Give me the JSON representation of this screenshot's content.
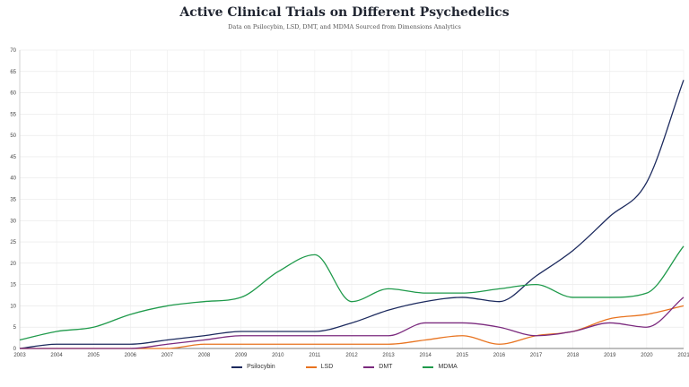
{
  "chart_data": {
    "type": "line",
    "title": "Active Clinical Trials on Different Psychedelics",
    "subtitle": "Data on Psilocybin, LSD, DMT, and MDMA Sourced from Dimensions Analytics",
    "xlabel": "",
    "ylabel": "",
    "x": [
      "2003",
      "2004",
      "2005",
      "2006",
      "2007",
      "2008",
      "2009",
      "2010",
      "2011",
      "2012",
      "2013",
      "2014",
      "2015",
      "2016",
      "2017",
      "2018",
      "2019",
      "2020",
      "2021"
    ],
    "ylim": [
      0,
      70
    ],
    "yticks": [
      0,
      5,
      10,
      15,
      20,
      25,
      30,
      35,
      40,
      45,
      50,
      55,
      60,
      65,
      70
    ],
    "grid": true,
    "legend_position": "bottom",
    "series": [
      {
        "name": "Psilocybin",
        "color": "#1c2a5e",
        "values": [
          0,
          1,
          1,
          1,
          2,
          3,
          4,
          4,
          4,
          6,
          9,
          11,
          12,
          11,
          17,
          23,
          31,
          39,
          63
        ]
      },
      {
        "name": "LSD",
        "color": "#e8731f",
        "values": [
          0,
          0,
          0,
          0,
          0,
          1,
          1,
          1,
          1,
          1,
          1,
          2,
          3,
          1,
          3,
          4,
          7,
          8,
          10
        ]
      },
      {
        "name": "DMT",
        "color": "#7b2a7e",
        "values": [
          0,
          0,
          0,
          0,
          1,
          2,
          3,
          3,
          3,
          3,
          3,
          6,
          6,
          5,
          3,
          4,
          6,
          5,
          12
        ]
      },
      {
        "name": "MDMA",
        "color": "#1f9a4b",
        "values": [
          2,
          4,
          5,
          8,
          10,
          11,
          12,
          18,
          22,
          11,
          14,
          13,
          13,
          14,
          15,
          12,
          12,
          13,
          24
        ]
      }
    ]
  }
}
